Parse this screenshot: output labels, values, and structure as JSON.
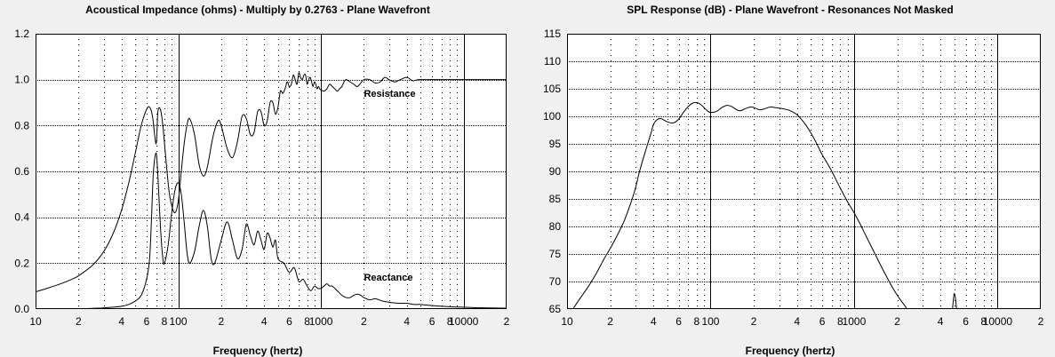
{
  "chart_data": [
    {
      "type": "line",
      "title": "Acoustical Impedance (ohms) - Multiply by 0.2763 - Plane Wavefront",
      "xlabel": "Frequency (hertz)",
      "ylabel": "",
      "x_scale": "log",
      "xlim": [
        10,
        20000
      ],
      "ylim": [
        0,
        1.2
      ],
      "grid": true,
      "x_tick_labels": [
        {
          "value": 10,
          "label": "10"
        },
        {
          "value": 20,
          "label": "2"
        },
        {
          "value": 40,
          "label": "4"
        },
        {
          "value": 60,
          "label": "6"
        },
        {
          "value": 80,
          "label": "8"
        },
        {
          "value": 100,
          "label": "100"
        },
        {
          "value": 200,
          "label": "2"
        },
        {
          "value": 400,
          "label": "4"
        },
        {
          "value": 600,
          "label": "6"
        },
        {
          "value": 800,
          "label": "8"
        },
        {
          "value": 1000,
          "label": "1000"
        },
        {
          "value": 2000,
          "label": "2"
        },
        {
          "value": 4000,
          "label": "4"
        },
        {
          "value": 6000,
          "label": "6"
        },
        {
          "value": 8000,
          "label": "8"
        },
        {
          "value": 10000,
          "label": "10000"
        },
        {
          "value": 20000,
          "label": "2"
        }
      ],
      "y_tick_labels": [
        {
          "value": 0,
          "label": "0.0"
        },
        {
          "value": 0.2,
          "label": "0.2"
        },
        {
          "value": 0.4,
          "label": "0.4"
        },
        {
          "value": 0.6,
          "label": "0.6"
        },
        {
          "value": 0.8,
          "label": "0.8"
        },
        {
          "value": 1.0,
          "label": "1.0"
        },
        {
          "value": 1.2,
          "label": "1.2"
        }
      ],
      "annotations": [
        {
          "text": "Resistance",
          "x": 2000,
          "y": 0.94
        },
        {
          "text": "Reactance",
          "x": 2000,
          "y": 0.14
        }
      ],
      "series": [
        {
          "x": [
            10,
            12,
            15,
            18,
            20,
            25,
            30,
            35,
            40,
            45,
            50,
            55,
            60,
            63,
            66,
            70,
            72,
            75,
            78,
            82,
            86,
            90,
            95,
            100,
            105,
            110,
            115,
            120,
            130,
            140,
            150,
            160,
            175,
            190,
            200,
            220,
            240,
            260,
            280,
            300,
            320,
            340,
            360,
            380,
            400,
            420,
            440,
            460,
            480,
            500,
            520,
            540,
            560,
            580,
            600,
            620,
            640,
            660,
            680,
            700,
            720,
            740,
            760,
            780,
            800,
            820,
            840,
            860,
            880,
            900,
            920,
            940,
            960,
            980,
            1000,
            1050,
            1100,
            1150,
            1200,
            1250,
            1300,
            1350,
            1400,
            1450,
            1500,
            1600,
            1700,
            1800,
            1900,
            2000,
            2200,
            2400,
            2600,
            2800,
            3000,
            3300,
            3600,
            4000,
            4400,
            4800,
            5200,
            6000,
            7000,
            8000,
            9000,
            10000,
            12000,
            14000,
            16000,
            18000,
            20000
          ],
          "y": [
            0.075,
            0.09,
            0.11,
            0.13,
            0.145,
            0.19,
            0.25,
            0.33,
            0.43,
            0.55,
            0.68,
            0.8,
            0.87,
            0.88,
            0.84,
            0.72,
            0.86,
            0.87,
            0.8,
            0.65,
            0.52,
            0.45,
            0.42,
            0.47,
            0.6,
            0.72,
            0.8,
            0.83,
            0.76,
            0.63,
            0.58,
            0.62,
            0.75,
            0.82,
            0.8,
            0.7,
            0.66,
            0.73,
            0.84,
            0.83,
            0.76,
            0.77,
            0.86,
            0.86,
            0.8,
            0.82,
            0.9,
            0.9,
            0.85,
            0.88,
            0.95,
            0.94,
            0.96,
            0.99,
            0.97,
            0.98,
            1.02,
            1.0,
            0.98,
            1.03,
            1.01,
            1.0,
            1.02,
            1.02,
            0.98,
            1.0,
            1.01,
            0.99,
            0.97,
            0.99,
            0.98,
            0.96,
            0.97,
            0.96,
            0.955,
            0.95,
            0.96,
            0.98,
            0.97,
            0.96,
            0.95,
            0.96,
            0.97,
            0.99,
            1.0,
            0.99,
            0.98,
            0.97,
            0.985,
            1.0,
            1.0,
            0.985,
            0.99,
            1.01,
            1.0,
            0.99,
            1.0,
            1.01,
            0.995,
            1.0,
            1.0,
            1.0,
            1.0,
            1.0,
            1.0,
            1.0,
            1.0,
            1.0,
            1.0,
            1.0,
            1.0
          ]
        },
        {
          "x": [
            20,
            25,
            30,
            35,
            40,
            45,
            50,
            55,
            60,
            63,
            65,
            67,
            70,
            72,
            75,
            78,
            80,
            85,
            90,
            95,
            100,
            105,
            110,
            115,
            120,
            130,
            140,
            150,
            160,
            170,
            180,
            200,
            220,
            240,
            260,
            280,
            300,
            320,
            340,
            360,
            380,
            400,
            420,
            440,
            460,
            480,
            500,
            550,
            600,
            650,
            700,
            750,
            800,
            850,
            900,
            950,
            1000,
            1050,
            1100,
            1150,
            1200,
            1300,
            1400,
            1500,
            1600,
            1700,
            1800,
            1900,
            2000,
            2200,
            2400,
            2700,
            3000,
            3500,
            4000,
            4500,
            5000,
            6000,
            7000,
            8000,
            10000,
            12000,
            15000,
            20000
          ],
          "y": [
            0.0,
            0.003,
            0.005,
            0.008,
            0.012,
            0.02,
            0.035,
            0.06,
            0.13,
            0.22,
            0.4,
            0.6,
            0.68,
            0.58,
            0.36,
            0.22,
            0.2,
            0.28,
            0.42,
            0.52,
            0.55,
            0.5,
            0.38,
            0.25,
            0.2,
            0.25,
            0.36,
            0.43,
            0.36,
            0.22,
            0.2,
            0.3,
            0.38,
            0.3,
            0.22,
            0.26,
            0.37,
            0.32,
            0.28,
            0.34,
            0.3,
            0.26,
            0.33,
            0.31,
            0.27,
            0.3,
            0.22,
            0.2,
            0.16,
            0.18,
            0.12,
            0.13,
            0.1,
            0.08,
            0.1,
            0.09,
            0.09,
            0.1,
            0.11,
            0.1,
            0.1,
            0.08,
            0.06,
            0.05,
            0.05,
            0.06,
            0.065,
            0.06,
            0.05,
            0.04,
            0.045,
            0.035,
            0.03,
            0.025,
            0.025,
            0.02,
            0.02,
            0.015,
            0.012,
            0.01,
            0.008,
            0.006,
            0.005,
            0.004
          ]
        }
      ]
    },
    {
      "type": "line",
      "title": "SPL Response (dB) - Plane Wavefront - Resonances Not Masked",
      "xlabel": "Frequency (hertz)",
      "ylabel": "",
      "x_scale": "log",
      "xlim": [
        10,
        20000
      ],
      "ylim": [
        65,
        115
      ],
      "grid": true,
      "x_tick_labels": [
        {
          "value": 10,
          "label": "10"
        },
        {
          "value": 20,
          "label": "2"
        },
        {
          "value": 40,
          "label": "4"
        },
        {
          "value": 60,
          "label": "6"
        },
        {
          "value": 80,
          "label": "8"
        },
        {
          "value": 100,
          "label": "100"
        },
        {
          "value": 200,
          "label": "2"
        },
        {
          "value": 400,
          "label": "4"
        },
        {
          "value": 600,
          "label": "6"
        },
        {
          "value": 800,
          "label": "8"
        },
        {
          "value": 1000,
          "label": "1000"
        },
        {
          "value": 2000,
          "label": "2"
        },
        {
          "value": 4000,
          "label": "4"
        },
        {
          "value": 6000,
          "label": "6"
        },
        {
          "value": 8000,
          "label": "8"
        },
        {
          "value": 10000,
          "label": "10000"
        },
        {
          "value": 20000,
          "label": "2"
        }
      ],
      "y_tick_labels": [
        {
          "value": 65,
          "label": "65"
        },
        {
          "value": 70,
          "label": "70"
        },
        {
          "value": 75,
          "label": "75"
        },
        {
          "value": 80,
          "label": "80"
        },
        {
          "value": 85,
          "label": "85"
        },
        {
          "value": 90,
          "label": "90"
        },
        {
          "value": 95,
          "label": "95"
        },
        {
          "value": 100,
          "label": "100"
        },
        {
          "value": 105,
          "label": "105"
        },
        {
          "value": 110,
          "label": "110"
        },
        {
          "value": 115,
          "label": "115"
        }
      ],
      "series": [
        {
          "x": [
            11,
            12,
            14,
            16,
            18,
            20,
            22,
            25,
            28,
            30,
            32,
            35,
            38,
            40,
            42,
            45,
            50,
            55,
            60,
            65,
            70,
            75,
            80,
            85,
            90,
            95,
            100,
            110,
            120,
            130,
            140,
            150,
            160,
            175,
            190,
            200,
            220,
            240,
            260,
            280,
            300,
            330,
            360,
            400,
            450,
            500,
            550,
            600,
            650,
            700,
            800,
            900,
            1000,
            1100,
            1200,
            1400,
            1600,
            1800,
            2000,
            2200,
            2500
          ],
          "y": [
            65,
            66.5,
            69,
            71.5,
            74,
            76,
            78,
            81,
            84.5,
            87,
            90,
            93.5,
            96.5,
            98.5,
            99.3,
            99.6,
            99.0,
            98.8,
            99.5,
            100.8,
            101.8,
            102.4,
            102.5,
            102.2,
            101.6,
            101.0,
            100.7,
            100.9,
            101.6,
            102.0,
            101.8,
            101.3,
            101.0,
            101.4,
            101.7,
            101.6,
            101.2,
            101.4,
            101.7,
            101.6,
            101.5,
            101.3,
            101.0,
            100.3,
            98.8,
            97,
            95,
            93,
            91.5,
            90,
            87,
            84.5,
            82.5,
            80.5,
            78.5,
            75,
            72,
            69.5,
            67.5,
            66,
            64
          ]
        },
        {
          "x": [
            4850,
            4950,
            5000,
            5080,
            5180
          ],
          "y": [
            65,
            67.3,
            67.8,
            67.1,
            65
          ]
        }
      ]
    }
  ]
}
